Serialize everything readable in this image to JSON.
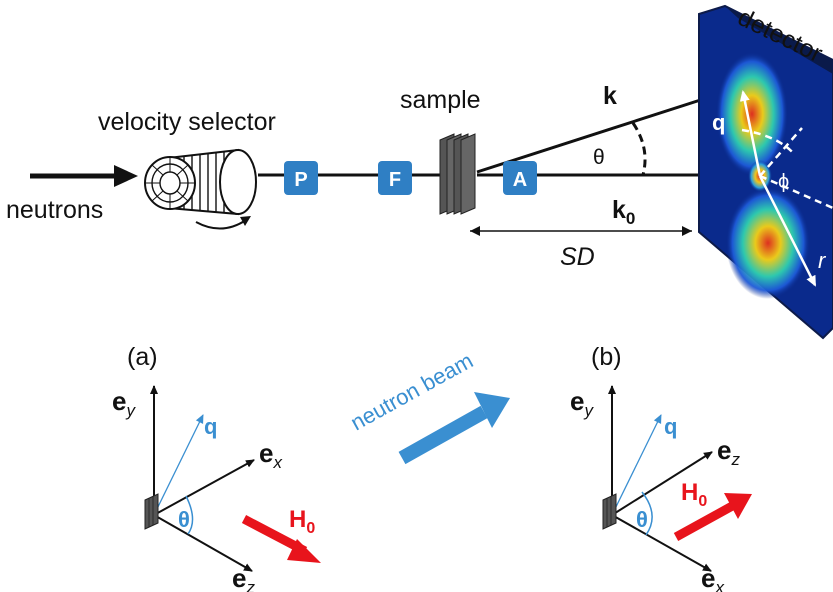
{
  "labels": {
    "neutrons": "neutrons",
    "velocity_selector": "velocity selector",
    "sample": "sample",
    "detector": "detector",
    "k": "k",
    "k0_base": "k",
    "k0_sub": "0",
    "theta": "θ",
    "q": "q",
    "phi": "ϕ",
    "r": "r",
    "sd": "SD",
    "neutron_beam": "neutron beam"
  },
  "components": {
    "polarizer": "P",
    "flipper": "F",
    "analyzer": "A"
  },
  "panels": {
    "a": {
      "tag": "(a)",
      "e": "e",
      "axis_up_sub": "y",
      "axis_right_sub": "x",
      "axis_down_sub": "z",
      "q": "q",
      "theta": "θ",
      "h": "H",
      "h_sub": "0"
    },
    "b": {
      "tag": "(b)",
      "e": "e",
      "axis_up_sub": "y",
      "axis_right_sub": "z",
      "axis_down_sub": "x",
      "q": "q",
      "theta": "θ",
      "h": "H",
      "h_sub": "0"
    }
  },
  "colors": {
    "component_box": "#2f7fc4",
    "q_blue": "#3a8fd1",
    "field_red": "#e8141c",
    "detector_bg": "#0a2a8c"
  }
}
